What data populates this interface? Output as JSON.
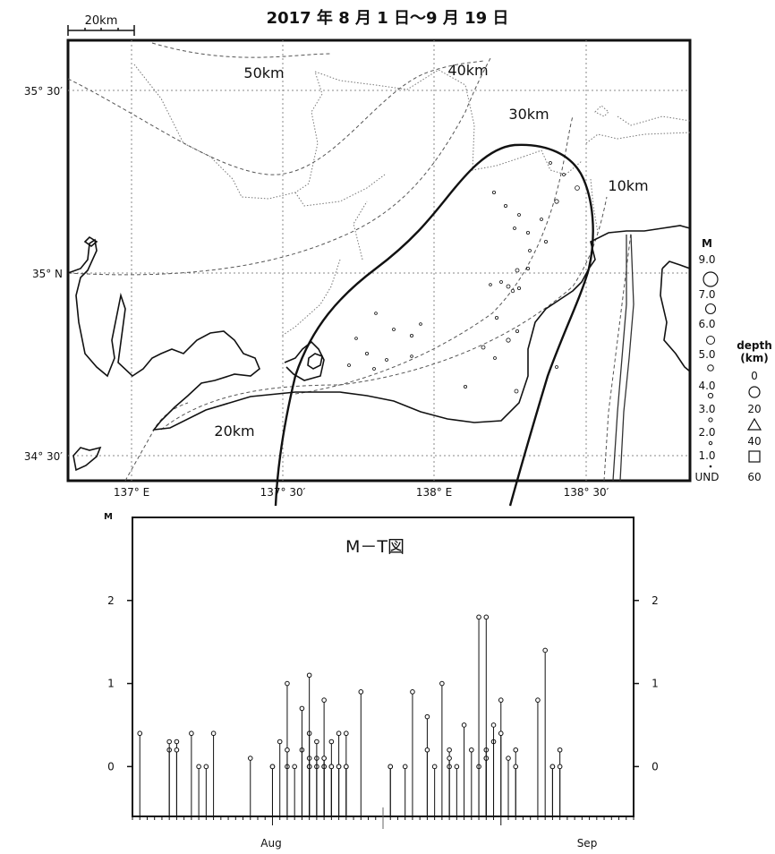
{
  "title": "2017 年 8 月 1 日～9 月 19 日",
  "scale_label": "20km",
  "map": {
    "lat_labels": [
      "35° 30′",
      "35° N",
      "34° 30′"
    ],
    "lon_labels": [
      "137° E",
      "137° 30′",
      "138° E",
      "138° 30′"
    ],
    "distance_labels": [
      "50km",
      "40km",
      "30km",
      "10km",
      "20km"
    ]
  },
  "legend": {
    "magnitude_header": "M",
    "magnitudes": [
      "9.0",
      "7.0",
      "6.0",
      "5.0",
      "4.0",
      "3.0",
      "2.0",
      "1.0",
      "UND"
    ],
    "depth_header": "depth",
    "depth_unit": "(km)",
    "depths": [
      "0",
      "20",
      "40",
      "60"
    ]
  },
  "mt_chart": {
    "title": "M－T図",
    "axis_label": "M",
    "y_ticks": [
      "0",
      "1",
      "2"
    ],
    "x_labels": [
      "Aug",
      "Sep"
    ]
  },
  "chart_data": {
    "type": "scatter",
    "title": "M－T図",
    "xlabel": "",
    "ylabel": "M",
    "ylim": [
      -0.6,
      3
    ],
    "x_range": [
      "2017-07-13",
      "2017-09-19"
    ],
    "x_tick_labels": [
      "Aug",
      "Sep"
    ],
    "x": [
      "2017-07-14",
      "2017-07-18",
      "2017-07-18",
      "2017-07-19",
      "2017-07-19",
      "2017-07-21",
      "2017-07-22",
      "2017-07-23",
      "2017-07-24",
      "2017-07-29",
      "2017-08-01",
      "2017-08-01",
      "2017-08-02",
      "2017-08-03",
      "2017-08-03",
      "2017-08-03",
      "2017-08-04",
      "2017-08-05",
      "2017-08-05",
      "2017-08-06",
      "2017-08-06",
      "2017-08-06",
      "2017-08-06",
      "2017-08-06",
      "2017-08-07",
      "2017-08-07",
      "2017-08-07",
      "2017-08-08",
      "2017-08-08",
      "2017-08-08",
      "2017-08-08",
      "2017-08-08",
      "2017-08-09",
      "2017-08-09",
      "2017-08-09",
      "2017-08-10",
      "2017-08-10",
      "2017-08-10",
      "2017-08-11",
      "2017-08-11",
      "2017-08-11",
      "2017-08-13",
      "2017-08-17",
      "2017-08-17",
      "2017-08-19",
      "2017-08-20",
      "2017-08-22",
      "2017-08-22",
      "2017-08-23",
      "2017-08-24",
      "2017-08-25",
      "2017-08-25",
      "2017-08-25",
      "2017-08-26",
      "2017-08-27",
      "2017-08-28",
      "2017-08-29",
      "2017-08-29",
      "2017-08-30",
      "2017-08-30",
      "2017-08-30",
      "2017-08-30",
      "2017-08-31",
      "2017-08-31",
      "2017-09-01",
      "2017-09-01",
      "2017-09-02",
      "2017-09-03",
      "2017-09-03",
      "2017-09-06",
      "2017-09-07",
      "2017-09-08",
      "2017-09-08",
      "2017-09-09",
      "2017-09-09"
    ],
    "values": [
      0.4,
      0.2,
      0.3,
      0.3,
      0.2,
      0.4,
      0.0,
      0.0,
      0.4,
      0.1,
      0.0,
      0.0,
      0.3,
      0.0,
      1.0,
      0.2,
      0.0,
      0.2,
      0.7,
      0.4,
      0.0,
      0.0,
      0.1,
      1.1,
      0.0,
      0.1,
      0.3,
      0.0,
      0.0,
      0.1,
      0.8,
      0.1,
      0.0,
      0.3,
      0.0,
      0.0,
      0.4,
      0.0,
      0.0,
      0.4,
      0.0,
      0.9,
      0.0,
      0.0,
      0.0,
      0.9,
      0.6,
      0.2,
      0.0,
      1.0,
      0.2,
      0.0,
      0.1,
      0.0,
      0.5,
      0.2,
      0.0,
      1.8,
      0.1,
      0.2,
      0.1,
      1.8,
      0.3,
      0.5,
      0.8,
      0.4,
      0.1,
      0.2,
      0.0,
      0.8,
      1.4,
      0.0,
      0.0,
      0.2,
      0.0
    ]
  }
}
